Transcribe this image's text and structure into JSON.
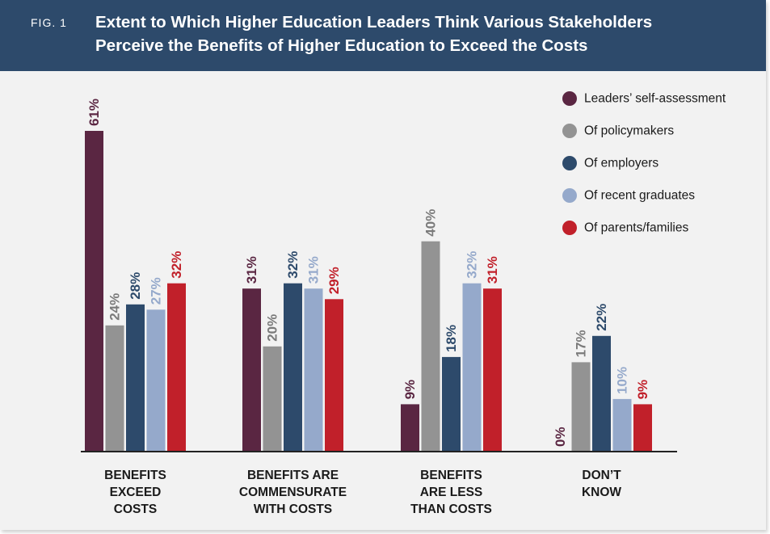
{
  "figure": {
    "label": "FIG. 1",
    "title_line1": "Extent to Which Higher Education Leaders Think Various Stakeholders",
    "title_line2": "Perceive the Benefits of Higher Education to Exceed the Costs"
  },
  "chart_data": {
    "type": "bar",
    "title": "Extent to Which Higher Education Leaders Think Various Stakeholders Perceive the Benefits of Higher Education to Exceed the Costs",
    "categories": [
      [
        "BENEFITS",
        "EXCEED",
        "COSTS"
      ],
      [
        "BENEFITS ARE",
        "COMMENSURATE",
        "WITH COSTS"
      ],
      [
        "BENEFITS",
        "ARE LESS",
        "THAN COSTS"
      ],
      [
        "DON’T",
        "KNOW"
      ]
    ],
    "series": [
      {
        "name": "Leaders’ self-assessment",
        "color": "#5a2642",
        "label_color": "#5a2642",
        "values": [
          61,
          31,
          9,
          0
        ]
      },
      {
        "name": "Of policymakers",
        "color": "#939393",
        "label_color": "#7a7a7a",
        "values": [
          24,
          20,
          40,
          17
        ]
      },
      {
        "name": "Of employers",
        "color": "#2d4a6b",
        "label_color": "#2d4a6b",
        "values": [
          28,
          32,
          18,
          22
        ]
      },
      {
        "name": "Of recent graduates",
        "color": "#95a9cb",
        "label_color": "#95a9cb",
        "values": [
          27,
          31,
          32,
          10
        ]
      },
      {
        "name": "Of parents/families",
        "color": "#c1202a",
        "label_color": "#c1202a",
        "values": [
          32,
          29,
          31,
          9
        ]
      }
    ],
    "value_suffix": "%",
    "ylim": [
      0,
      61
    ],
    "grid": false,
    "legend_position": "top-right",
    "xlabel": "",
    "ylabel": ""
  }
}
